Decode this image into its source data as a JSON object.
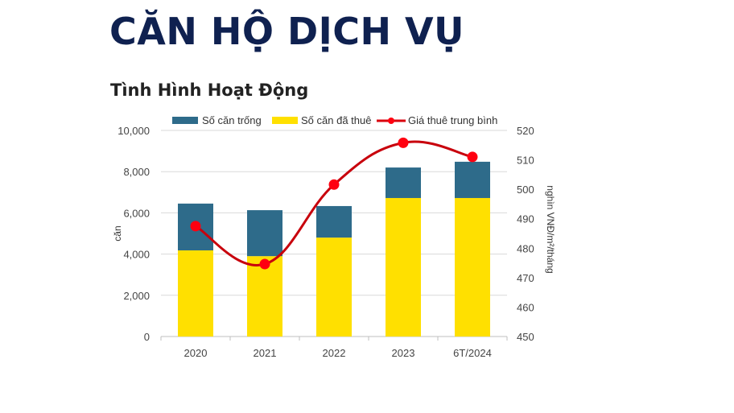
{
  "page": {
    "title": "CĂN HỘ DỊCH VỤ",
    "subtitle": "Tình Hình Hoạt Động"
  },
  "colors": {
    "vacant": "#2e6b8a",
    "rented": "#ffe000",
    "price_line": "#d9000d",
    "title": "#0f2150",
    "grid": "#d9d9d9"
  },
  "chart_data": {
    "type": "bar",
    "subtype": "stacked-bar-with-line",
    "title": "Tình Hình Hoạt Động",
    "categories": [
      "2020",
      "2021",
      "2022",
      "2023",
      "6T/2024"
    ],
    "series": [
      {
        "name": "Số căn đã thuê",
        "type": "bar",
        "axis": "left",
        "color": "#ffe000",
        "values": [
          4180,
          3900,
          4800,
          6720,
          6720
        ]
      },
      {
        "name": "Số căn trống",
        "type": "bar",
        "axis": "left",
        "color": "#2e6b8a",
        "values": [
          2270,
          2230,
          1530,
          1480,
          1760
        ]
      },
      {
        "name": "Giá thuê trung bình",
        "type": "line",
        "axis": "right",
        "color": "#d9000d",
        "values": [
          487.5,
          474.6,
          501.6,
          515.8,
          511
        ]
      }
    ],
    "totals": [
      6450,
      6130,
      6330,
      8200,
      8480
    ],
    "xlabel": "",
    "ylabel": "căn",
    "ylabel_right": "nghìn VNĐ/m²/tháng",
    "ylim": [
      0,
      10000
    ],
    "yticks": [
      "0",
      "2,000",
      "4,000",
      "6,000",
      "8,000",
      "10,000"
    ],
    "ylim_right": [
      450,
      520
    ],
    "yticks_right": [
      "450",
      "460",
      "470",
      "480",
      "490",
      "500",
      "510",
      "520"
    ],
    "legend": [
      "Số căn trống",
      "Số căn đã thuê",
      "Giá thuê trung bình"
    ],
    "legend_position": "top",
    "grid": true
  }
}
